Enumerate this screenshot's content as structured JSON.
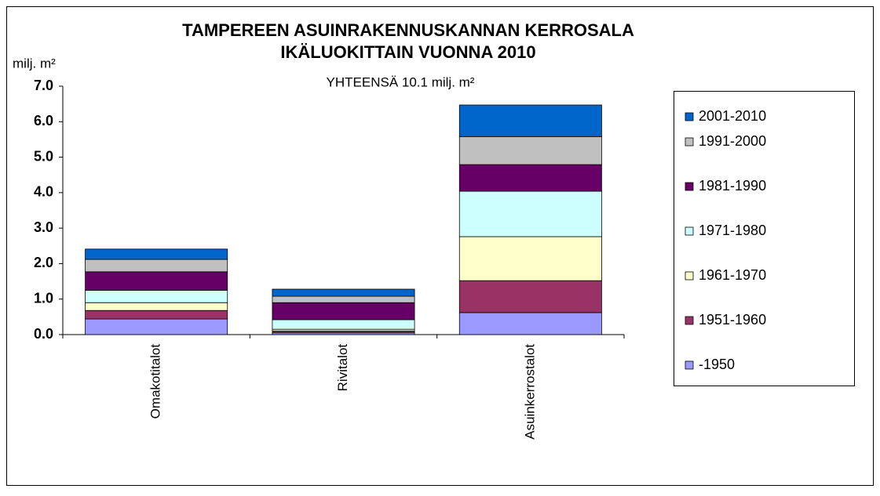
{
  "chart_data": {
    "type": "stacked-bar",
    "title": [
      "TAMPEREEN ASUINRAKENNUSKANNAN KERROSALA",
      "IKÄLUOKITTAIN VUONNA 2010"
    ],
    "y_axis_label": "milj. m²",
    "subtitle": "YHTEENSÄ 10.1 milj. m²",
    "categories": [
      "Omakotitalot",
      "Rivitalot",
      "Asuinkerrostalot"
    ],
    "series": [
      {
        "name": "-1950",
        "color": "#9999ff",
        "values": [
          0.44,
          0.05,
          0.62
        ]
      },
      {
        "name": "1951-1960",
        "color": "#993366",
        "values": [
          0.24,
          0.05,
          0.9
        ]
      },
      {
        "name": "1961-1970",
        "color": "#ffffcc",
        "values": [
          0.22,
          0.05,
          1.24
        ]
      },
      {
        "name": "1971-1980",
        "color": "#ccffff",
        "values": [
          0.35,
          0.27,
          1.28
        ]
      },
      {
        "name": "1981-1990",
        "color": "#660066",
        "values": [
          0.52,
          0.48,
          0.75
        ]
      },
      {
        "name": "1991-2000",
        "color": "#c0c0c0",
        "values": [
          0.35,
          0.18,
          0.79
        ]
      },
      {
        "name": "2001-2010",
        "color": "#0066cc",
        "values": [
          0.29,
          0.2,
          0.89
        ]
      }
    ],
    "ylim": [
      0,
      7
    ],
    "yticks": [
      {
        "value": 0,
        "label": "0.0"
      },
      {
        "value": 1,
        "label": "1.0"
      },
      {
        "value": 2,
        "label": "2.0"
      },
      {
        "value": 3,
        "label": "3.0"
      },
      {
        "value": 4,
        "label": "4.0"
      },
      {
        "value": 5,
        "label": "5.0"
      },
      {
        "value": 6,
        "label": "6.0"
      },
      {
        "value": 7,
        "label": "7.0"
      }
    ],
    "grid": false,
    "legend_position": "right"
  }
}
